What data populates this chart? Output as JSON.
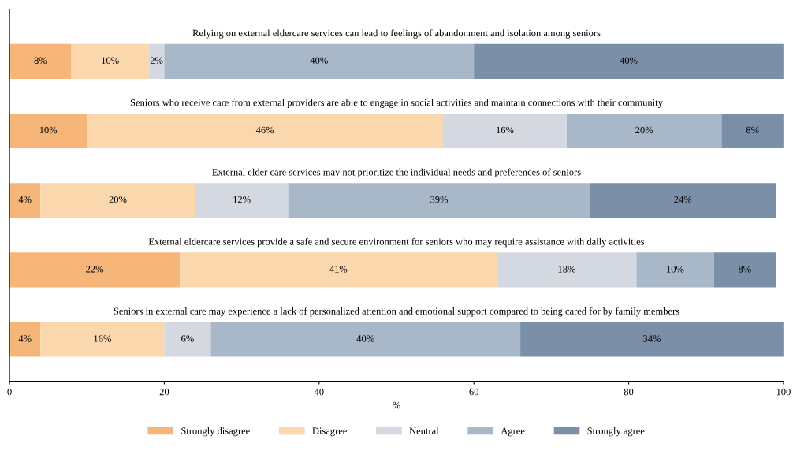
{
  "chart_data": {
    "type": "bar",
    "orientation": "horizontal",
    "stacked": true,
    "xlabel": "%",
    "categories": [
      null,
      null,
      null,
      null,
      null
    ],
    "annotations": [
      "Relying on external eldercare services can lead to feelings of abandonment and isolation among seniors",
      "Seniors who receive care from external providers are able to engage in social activities and maintain connections with their community",
      "External elder care services may not prioritize the individual needs and preferences of seniors",
      "External eldercare services provide a safe and secure environment for seniors who may require assistance with daily activities",
      "Seniors in external care may experience a lack of personalized attention and emotional support compared to being cared for by family members"
    ],
    "series": [
      {
        "name": "Strongly disagree",
        "color": "#f6b67a",
        "values": [
          8,
          10,
          4,
          22,
          4
        ],
        "value_labels": [
          "8%",
          "10%",
          "4%",
          "22%",
          "4%"
        ]
      },
      {
        "name": "Disagree",
        "color": "#fbd7ad",
        "values": [
          10,
          46,
          20,
          41,
          16
        ],
        "value_labels": [
          "10%",
          "46%",
          "20%",
          "41%",
          "16%"
        ]
      },
      {
        "name": "Neutral",
        "color": "#d3d8e1",
        "values": [
          2,
          16,
          12,
          18,
          6
        ],
        "value_labels": [
          "2%",
          "16%",
          "12%",
          "18%",
          "6%"
        ]
      },
      {
        "name": "Agree",
        "color": "#a8b8c8",
        "values": [
          40,
          20,
          39,
          10,
          40
        ],
        "value_labels": [
          "40%",
          "20%",
          "39%",
          "10%",
          "40%"
        ]
      },
      {
        "name": "Strongly agree",
        "color": "#7b8fa8",
        "values": [
          40,
          8,
          24,
          8,
          34
        ],
        "value_labels": [
          "40%",
          "8%",
          "24%",
          "8%",
          "34%"
        ]
      }
    ],
    "xlim": [
      0,
      100
    ],
    "xticks": [
      0,
      20,
      40,
      60,
      80,
      100
    ],
    "grid": false,
    "legend": "bottom"
  }
}
